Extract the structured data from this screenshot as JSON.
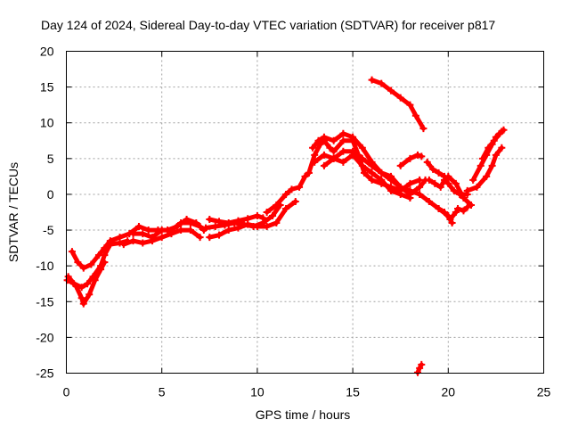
{
  "chart_data": {
    "type": "scatter",
    "title": "Day 124 of 2024, Sidereal Day-to-day VTEC variation (SDTVAR) for receiver p817",
    "xlabel": "GPS time / hours",
    "ylabel": "SDTVAR / TECUs",
    "xlim": [
      0,
      25
    ],
    "ylim": [
      -25,
      20
    ],
    "xticks": [
      0,
      5,
      10,
      15,
      20,
      25
    ],
    "yticks": [
      -25,
      -20,
      -15,
      -10,
      -5,
      0,
      5,
      10,
      15,
      20
    ],
    "grid": true,
    "legend": "none",
    "marker": "plus",
    "color": "#ff0000",
    "series": [
      {
        "points": [
          [
            0.05,
            -12.0
          ],
          [
            0.4,
            -12.5
          ],
          [
            0.8,
            -13.0
          ],
          [
            1.1,
            -12.5
          ],
          [
            1.4,
            -11.5
          ],
          [
            1.8,
            -10.0
          ],
          [
            2.0,
            -8.5
          ],
          [
            2.3,
            -7.0
          ],
          [
            2.8,
            -6.8
          ],
          [
            3.2,
            -6.5
          ]
        ]
      },
      {
        "points": [
          [
            0.3,
            -8.0
          ],
          [
            0.6,
            -9.5
          ],
          [
            0.9,
            -10.3
          ],
          [
            1.3,
            -9.8
          ],
          [
            1.7,
            -8.5
          ],
          [
            2.0,
            -7.5
          ],
          [
            2.3,
            -6.5
          ],
          [
            2.8,
            -6.0
          ],
          [
            3.3,
            -5.5
          ],
          [
            3.8,
            -4.5
          ],
          [
            4.3,
            -5.0
          ],
          [
            4.8,
            -5.0
          ],
          [
            5.3,
            -5.0
          ],
          [
            5.8,
            -4.5
          ],
          [
            6.3,
            -3.5
          ],
          [
            6.8,
            -4.0
          ],
          [
            7.2,
            -5.0
          ]
        ]
      },
      {
        "points": [
          [
            0.1,
            -11.5
          ],
          [
            0.5,
            -12.8
          ],
          [
            0.8,
            -14.5
          ],
          [
            0.9,
            -15.3
          ],
          [
            1.2,
            -14.0
          ],
          [
            1.5,
            -12.0
          ],
          [
            1.8,
            -10.5
          ],
          [
            2.0,
            -9.5
          ]
        ]
      },
      {
        "points": [
          [
            3.0,
            -7.0
          ],
          [
            3.5,
            -6.5
          ],
          [
            4.0,
            -6.8
          ],
          [
            4.5,
            -6.5
          ],
          [
            5.0,
            -6.0
          ],
          [
            5.5,
            -5.5
          ],
          [
            6.0,
            -5.0
          ],
          [
            6.5,
            -5.0
          ],
          [
            7.0,
            -6.0
          ]
        ]
      },
      {
        "points": [
          [
            3.5,
            -5.5
          ],
          [
            4.0,
            -5.5
          ],
          [
            4.5,
            -6.0
          ],
          [
            5.0,
            -5.0
          ],
          [
            5.5,
            -5.0
          ],
          [
            6.0,
            -4.0
          ],
          [
            6.5,
            -4.0
          ],
          [
            7.0,
            -4.5
          ]
        ]
      },
      {
        "points": [
          [
            7.5,
            -3.5
          ],
          [
            8.0,
            -3.8
          ],
          [
            8.5,
            -4.0
          ],
          [
            9.0,
            -3.7
          ],
          [
            9.5,
            -3.4
          ],
          [
            10.0,
            -3.0
          ],
          [
            10.3,
            -3.3
          ]
        ]
      },
      {
        "points": [
          [
            7.5,
            -6.0
          ],
          [
            8.0,
            -5.7
          ],
          [
            8.5,
            -5.0
          ],
          [
            9.0,
            -4.7
          ],
          [
            9.5,
            -4.2
          ],
          [
            10.0,
            -4.5
          ],
          [
            10.5,
            -4.5
          ],
          [
            11.0,
            -4.0
          ],
          [
            11.5,
            -2.0
          ],
          [
            12.0,
            -1.0
          ]
        ]
      },
      {
        "points": [
          [
            7.3,
            -4.7
          ],
          [
            7.8,
            -4.5
          ],
          [
            8.3,
            -4.3
          ],
          [
            8.8,
            -4.0
          ],
          [
            9.3,
            -4.2
          ],
          [
            9.8,
            -4.5
          ],
          [
            10.3,
            -4.0
          ],
          [
            10.8,
            -3.0
          ],
          [
            11.2,
            -1.5
          ]
        ]
      },
      {
        "points": [
          [
            10.5,
            -2.5
          ],
          [
            11.0,
            -1.5
          ],
          [
            11.5,
            0.0
          ],
          [
            11.8,
            0.7
          ],
          [
            12.2,
            1.0
          ],
          [
            12.5,
            2.5
          ],
          [
            12.7,
            3.0
          ]
        ]
      },
      {
        "points": [
          [
            12.7,
            3.0
          ],
          [
            13.0,
            5.5
          ],
          [
            13.3,
            7.0
          ],
          [
            13.5,
            7.5
          ],
          [
            13.8,
            6.5
          ],
          [
            14.0,
            6.0
          ],
          [
            14.5,
            7.5
          ],
          [
            15.0,
            7.5
          ],
          [
            15.3,
            5.5
          ],
          [
            15.6,
            3.0
          ],
          [
            16.0,
            2.0
          ],
          [
            16.5,
            1.5
          ],
          [
            17.0,
            1.0
          ],
          [
            17.5,
            0.5
          ],
          [
            18.0,
            1.5
          ],
          [
            18.5,
            2.0
          ]
        ]
      },
      {
        "points": [
          [
            12.9,
            6.5
          ],
          [
            13.2,
            7.5
          ],
          [
            13.5,
            8.0
          ],
          [
            14.0,
            7.5
          ],
          [
            14.5,
            8.5
          ],
          [
            15.0,
            8.0
          ],
          [
            15.5,
            6.5
          ],
          [
            16.0,
            4.5
          ],
          [
            16.5,
            3.0
          ],
          [
            17.0,
            2.0
          ],
          [
            17.5,
            1.0
          ],
          [
            18.0,
            0.5
          ],
          [
            18.5,
            0.0
          ],
          [
            19.0,
            -1.0
          ],
          [
            19.5,
            -2.0
          ],
          [
            20.0,
            -3.0
          ],
          [
            20.2,
            -4.0
          ]
        ]
      },
      {
        "points": [
          [
            13.0,
            4.5
          ],
          [
            13.5,
            5.5
          ],
          [
            14.0,
            5.0
          ],
          [
            14.5,
            6.0
          ],
          [
            15.0,
            6.0
          ],
          [
            15.5,
            5.0
          ],
          [
            16.0,
            4.0
          ],
          [
            16.5,
            3.0
          ],
          [
            17.0,
            2.5
          ],
          [
            17.5,
            1.0
          ],
          [
            18.0,
            0.0
          ],
          [
            18.5,
            1.0
          ],
          [
            18.8,
            2.0
          ]
        ]
      },
      {
        "points": [
          [
            13.5,
            4.0
          ],
          [
            14.0,
            5.0
          ],
          [
            14.5,
            4.5
          ],
          [
            15.0,
            5.5
          ],
          [
            15.5,
            4.0
          ],
          [
            16.0,
            3.0
          ],
          [
            16.5,
            2.0
          ],
          [
            17.0,
            0.5
          ],
          [
            17.5,
            0.0
          ],
          [
            18.0,
            -0.5
          ]
        ]
      },
      {
        "points": [
          [
            16.0,
            16.0
          ],
          [
            16.5,
            15.5
          ],
          [
            17.0,
            14.5
          ],
          [
            17.5,
            13.5
          ],
          [
            18.0,
            12.5
          ],
          [
            18.3,
            11.0
          ],
          [
            18.7,
            9.2
          ]
        ]
      },
      {
        "points": [
          [
            17.5,
            4.0
          ],
          [
            18.0,
            5.0
          ],
          [
            18.4,
            5.5
          ],
          [
            18.6,
            5.3
          ]
        ]
      },
      {
        "points": [
          [
            18.9,
            4.5
          ],
          [
            19.2,
            3.5
          ],
          [
            19.5,
            3.0
          ],
          [
            19.8,
            2.5
          ],
          [
            20.0,
            1.5
          ],
          [
            20.3,
            0.5
          ],
          [
            20.6,
            0.0
          ],
          [
            21.0,
            0.0
          ]
        ]
      },
      {
        "points": [
          [
            19.0,
            2.0
          ],
          [
            19.3,
            1.5
          ],
          [
            19.6,
            1.0
          ],
          [
            19.8,
            2.0
          ],
          [
            20.0,
            2.5
          ],
          [
            20.4,
            1.5
          ],
          [
            20.8,
            -0.5
          ],
          [
            21.2,
            -1.5
          ]
        ]
      },
      {
        "points": [
          [
            19.5,
            -2.0
          ],
          [
            19.8,
            -2.5
          ],
          [
            20.1,
            -3.5
          ],
          [
            20.4,
            -2.5
          ]
        ]
      },
      {
        "points": [
          [
            20.5,
            -2.0
          ],
          [
            20.8,
            -2.3
          ],
          [
            21.0,
            -1.8
          ]
        ]
      },
      {
        "points": [
          [
            21.0,
            0.5
          ],
          [
            21.5,
            1.0
          ],
          [
            22.0,
            2.5
          ],
          [
            22.3,
            4.0
          ],
          [
            22.5,
            5.5
          ],
          [
            22.8,
            6.5
          ]
        ]
      },
      {
        "points": [
          [
            21.3,
            2.0
          ],
          [
            21.7,
            4.0
          ],
          [
            22.0,
            5.5
          ],
          [
            22.3,
            7.0
          ],
          [
            22.5,
            8.0
          ],
          [
            22.8,
            8.8
          ]
        ]
      },
      {
        "points": [
          [
            21.8,
            5.0
          ],
          [
            22.1,
            6.5
          ],
          [
            22.4,
            7.5
          ],
          [
            22.7,
            8.5
          ],
          [
            22.9,
            9.0
          ]
        ]
      },
      {
        "points": [
          [
            18.4,
            -24.9
          ],
          [
            18.5,
            -24.3
          ],
          [
            18.6,
            -23.8
          ]
        ]
      }
    ]
  }
}
